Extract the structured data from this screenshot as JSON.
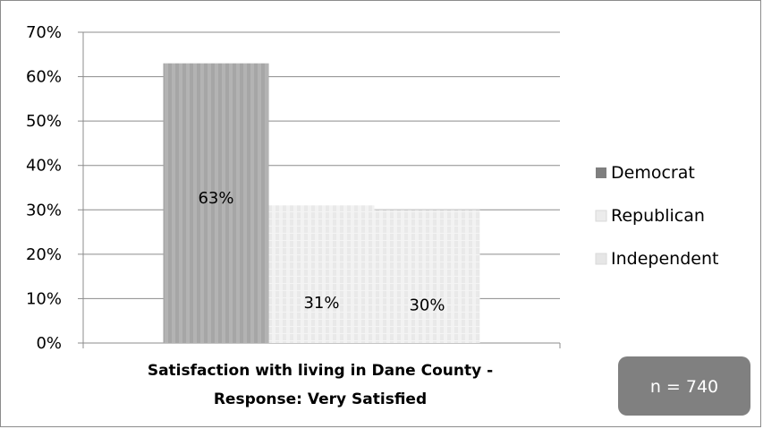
{
  "chart_data": {
    "type": "bar",
    "categories": [
      "Satisfaction with living in Dane County - Response: Very Satisfied"
    ],
    "category_label_lines": [
      "Satisfaction with living in Dane County -",
      "Response: Very Satisfied"
    ],
    "series": [
      {
        "name": "Democrat",
        "values": [
          63
        ],
        "color": "#a6a6a6"
      },
      {
        "name": "Republican",
        "values": [
          31
        ],
        "color": "#ececec"
      },
      {
        "name": "Independent",
        "values": [
          30
        ],
        "color": "#e6e6e6"
      }
    ],
    "data_labels": [
      "63%",
      "31%",
      "30%"
    ],
    "ylim": [
      0,
      70
    ],
    "yticks": [
      "0%",
      "10%",
      "20%",
      "30%",
      "40%",
      "50%",
      "60%",
      "70%"
    ],
    "grid": true,
    "legend_position": "right",
    "legend_swatch_colors": [
      "#7f7f7f",
      "#ececec",
      "#e6e6e6"
    ],
    "annotation": "n = 740",
    "annotation_bg": "#808080"
  }
}
